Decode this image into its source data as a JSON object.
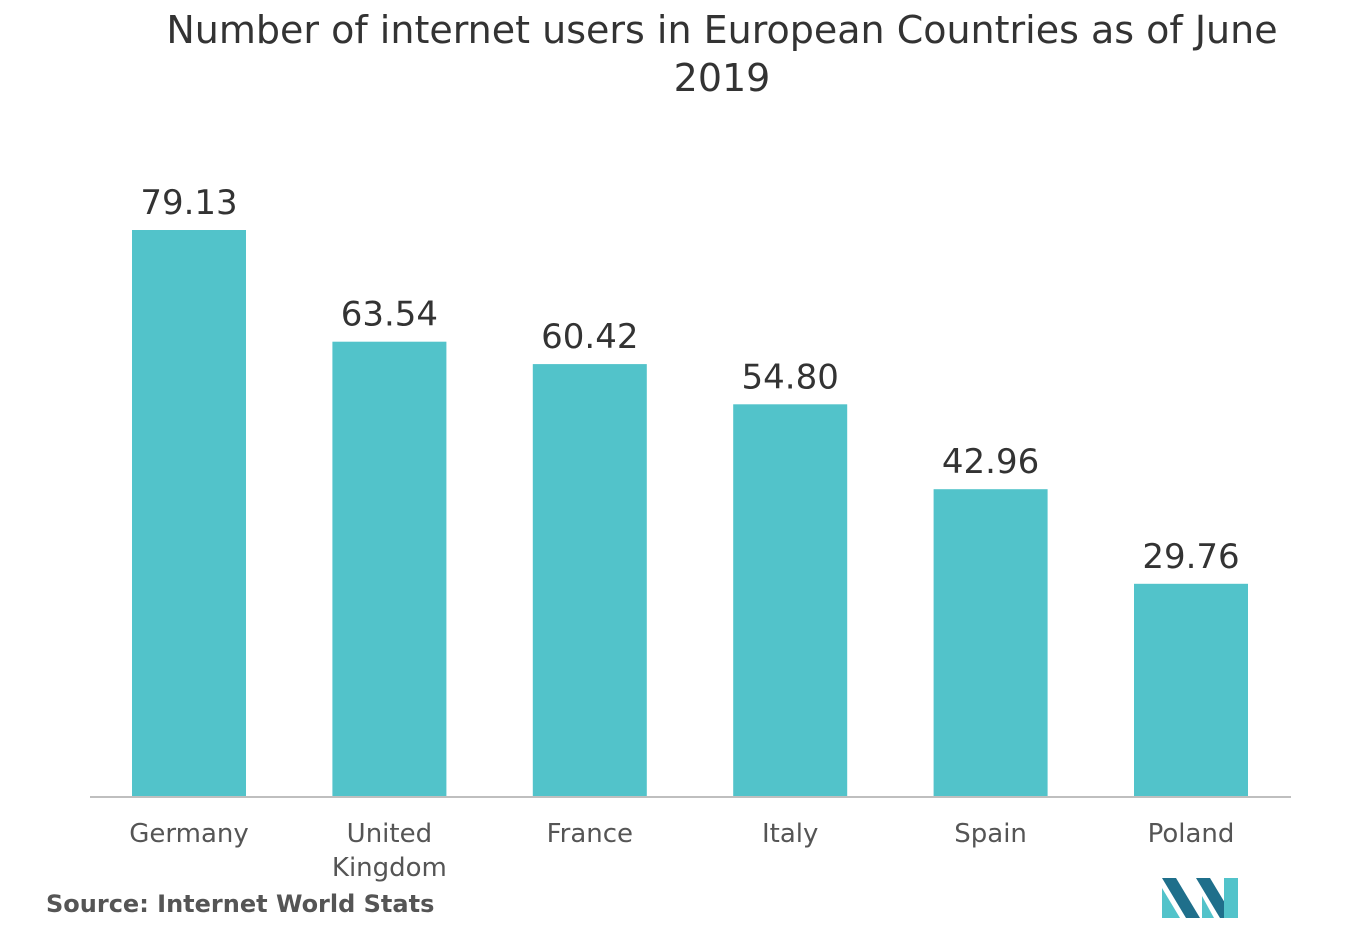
{
  "chart_data": {
    "type": "bar",
    "title": "Number of internet users in European Countries as of June 2019",
    "categories": [
      "Germany",
      "United Kingdom",
      "France",
      "Italy",
      "Spain",
      "Poland"
    ],
    "category_lines": [
      [
        "Germany"
      ],
      [
        "United",
        "Kingdom"
      ],
      [
        "France"
      ],
      [
        "Italy"
      ],
      [
        "Spain"
      ],
      [
        "Poland"
      ]
    ],
    "values": [
      79.13,
      63.54,
      60.42,
      54.8,
      42.96,
      29.76
    ],
    "value_labels": [
      "79.13",
      "63.54",
      "60.42",
      "54.80",
      "42.96",
      "29.76"
    ],
    "xlabel": "",
    "ylabel": "",
    "ylim": [
      0,
      79.13
    ],
    "grid": false,
    "legend": "none",
    "bar_color": "#52c3ca"
  },
  "footer": {
    "source": "Source: Internet World Stats"
  },
  "colors": {
    "text": "#333333",
    "axis": "#bfbfbf",
    "logo_dark": "#1f6f8b",
    "logo_light": "#52c3ca"
  },
  "icons": {
    "logo": "brand-logo-icon"
  }
}
